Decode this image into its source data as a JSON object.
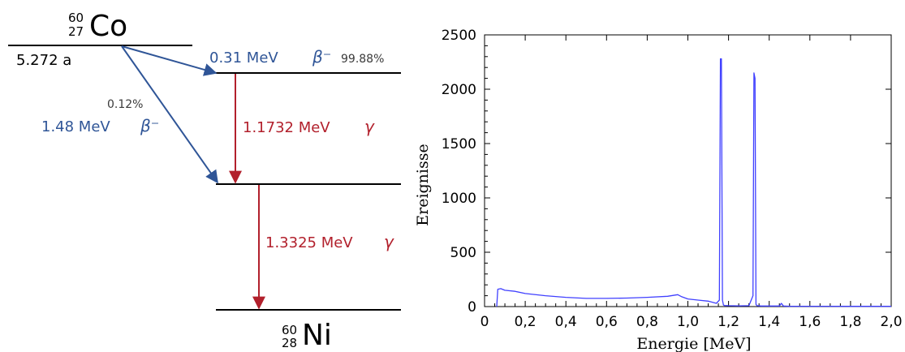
{
  "decay_scheme": {
    "parent": {
      "mass": "60",
      "atomic": "27",
      "symbol": "Co",
      "half_life": "5.272 a"
    },
    "daughter": {
      "mass": "60",
      "atomic": "28",
      "symbol": "Ni"
    },
    "beta_high": {
      "energy": "0.31 MeV",
      "symbol": "β⁻",
      "branch": "99.88%"
    },
    "beta_low": {
      "energy": "1.48 MeV",
      "symbol": "β⁻",
      "branch": "0.12%"
    },
    "gamma_1": {
      "energy": "1.1732 MeV",
      "symbol": "γ"
    },
    "gamma_2": {
      "energy": "1.3325 MeV",
      "symbol": "γ"
    },
    "colors": {
      "beta": "#2f5597",
      "gamma": "#b2202c",
      "level": "#000000"
    }
  },
  "chart_data": {
    "type": "line",
    "xlabel": "Energie [MeV]",
    "ylabel": "Ereignisse",
    "xlim": [
      0,
      2.0
    ],
    "ylim": [
      0,
      2500
    ],
    "x_ticks": [
      {
        "v": 0,
        "label": "0"
      },
      {
        "v": 0.2,
        "label": "0,2"
      },
      {
        "v": 0.4,
        "label": "0,4"
      },
      {
        "v": 0.6,
        "label": "0,6"
      },
      {
        "v": 0.8,
        "label": "0,8"
      },
      {
        "v": 1.0,
        "label": "1,0"
      },
      {
        "v": 1.2,
        "label": "1,2"
      },
      {
        "v": 1.4,
        "label": "1,4"
      },
      {
        "v": 1.6,
        "label": "1,6"
      },
      {
        "v": 1.8,
        "label": "1,8"
      },
      {
        "v": 2.0,
        "label": "2,0"
      }
    ],
    "y_ticks": [
      {
        "v": 0,
        "label": "0"
      },
      {
        "v": 500,
        "label": "500"
      },
      {
        "v": 1000,
        "label": "1000"
      },
      {
        "v": 1500,
        "label": "1500"
      },
      {
        "v": 2000,
        "label": "2000"
      },
      {
        "v": 2500,
        "label": "2500"
      }
    ],
    "grid": false,
    "color": "#4040ff",
    "series": [
      {
        "x": [
          0.06,
          0.065,
          0.08,
          0.1,
          0.15,
          0.2,
          0.3,
          0.4,
          0.5,
          0.6,
          0.7,
          0.8,
          0.9,
          0.95,
          0.97,
          1.0,
          1.05,
          1.1,
          1.12,
          1.14,
          1.155,
          1.16,
          1.165,
          1.17,
          1.175,
          1.18,
          1.2,
          1.25,
          1.3,
          1.32,
          1.325,
          1.33,
          1.335,
          1.34,
          1.36,
          1.4,
          1.45,
          1.46,
          1.47,
          1.5,
          1.6,
          1.8,
          2.0
        ],
        "y": [
          0,
          160,
          165,
          150,
          140,
          120,
          100,
          85,
          75,
          75,
          78,
          85,
          95,
          110,
          90,
          70,
          60,
          50,
          40,
          30,
          60,
          2280,
          2280,
          60,
          15,
          10,
          8,
          7,
          8,
          100,
          2150,
          2100,
          20,
          8,
          5,
          5,
          5,
          30,
          5,
          3,
          3,
          2,
          2
        ]
      }
    ]
  }
}
